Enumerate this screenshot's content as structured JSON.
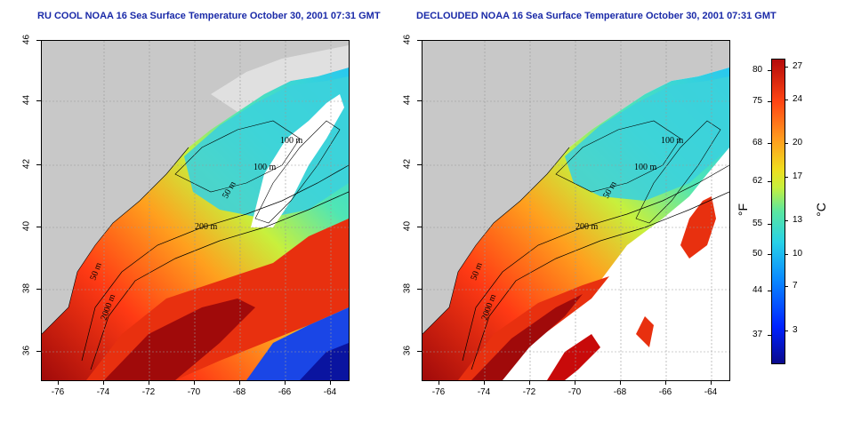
{
  "titles": {
    "left": "RU COOL NOAA 16 Sea Surface Temperature October 30, 2001 07:31 GMT",
    "right": "DECLOUDED NOAA 16 Sea Surface Temperature October 30, 2001 07:31 GMT"
  },
  "axes": {
    "lon_ticks": [
      "-76",
      "-74",
      "-72",
      "-70",
      "-68",
      "-66",
      "-64"
    ],
    "lat_ticks": [
      "46",
      "44",
      "42",
      "40",
      "38",
      "36"
    ]
  },
  "contour_labels": [
    "100 m",
    "100 m",
    "50 m",
    "200 m",
    "50 m",
    "2000 m"
  ],
  "colorbar": {
    "fahrenheit_unit": "°F",
    "celsius_unit": "°C",
    "fahrenheit_ticks": [
      "80",
      "75",
      "68",
      "62",
      "55",
      "50",
      "44",
      "37"
    ],
    "celsius_ticks": [
      "27",
      "24",
      "20",
      "17",
      "13",
      "10",
      "7",
      "3"
    ]
  },
  "colors": {
    "land": "#c8c8c8",
    "cloud": "#ffffff",
    "warm": "#c80a0a",
    "cool": "#28d2e6",
    "title": "#1a2aa8"
  }
}
